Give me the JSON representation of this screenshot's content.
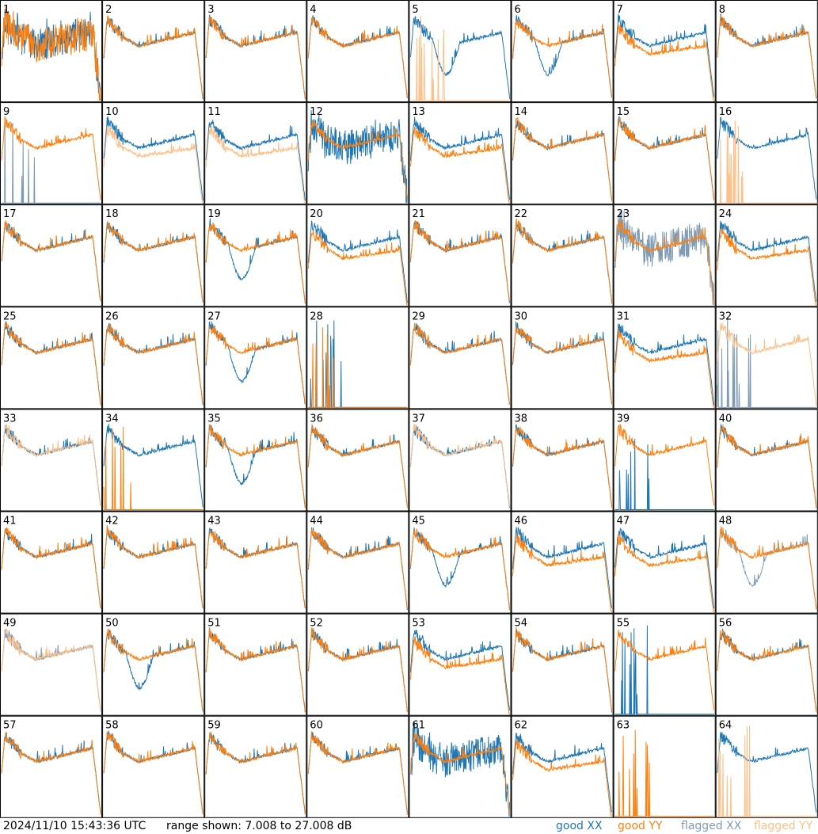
{
  "footer": {
    "timestamp": "2024/11/10 15:43:36 UTC",
    "range_text": "range shown: 7.008 to 27.008 dB"
  },
  "legend": {
    "good_xx": "good XX",
    "good_yy": "good YY",
    "flagged_xx": "flagged XX",
    "flagged_yy": "flagged YY"
  },
  "colors": {
    "good_xx": "#1f77b4",
    "good_yy": "#ff7f0e",
    "flagged_xx": "#7f9bb4",
    "flagged_yy": "#ffbf87"
  },
  "chart_data": {
    "type": "line",
    "layout": "8x8 small multiples",
    "ylim_db": [
      7.008,
      27.008
    ],
    "panels": [
      {
        "label": "1",
        "xx": "irregular",
        "yy": "irregular",
        "xx_flag": false,
        "yy_flag": false
      },
      {
        "label": "2",
        "xx": "normal",
        "yy": "normal",
        "xx_flag": false,
        "yy_flag": false
      },
      {
        "label": "3",
        "xx": "normal",
        "yy": "normal",
        "xx_flag": false,
        "yy_flag": false
      },
      {
        "label": "4",
        "xx": "normal",
        "yy": "normal",
        "xx_flag": false,
        "yy_flag": false
      },
      {
        "label": "5",
        "xx": "dip",
        "yy": "spikes",
        "xx_flag": false,
        "yy_flag": true
      },
      {
        "label": "6",
        "xx": "dip",
        "yy": "normal",
        "xx_flag": false,
        "yy_flag": false
      },
      {
        "label": "7",
        "xx": "normal",
        "yy": "low",
        "xx_flag": false,
        "yy_flag": false
      },
      {
        "label": "8",
        "xx": "normal",
        "yy": "normal",
        "xx_flag": false,
        "yy_flag": false
      },
      {
        "label": "9",
        "xx": "spikes",
        "yy": "normal",
        "xx_flag": true,
        "yy_flag": false
      },
      {
        "label": "10",
        "xx": "normal",
        "yy": "low",
        "xx_flag": false,
        "yy_flag": true
      },
      {
        "label": "11",
        "xx": "normal",
        "yy": "low",
        "xx_flag": false,
        "yy_flag": true
      },
      {
        "label": "12",
        "xx": "irregular",
        "yy": "normal",
        "xx_flag": false,
        "yy_flag": false
      },
      {
        "label": "13",
        "xx": "normal",
        "yy": "low",
        "xx_flag": false,
        "yy_flag": false
      },
      {
        "label": "14",
        "xx": "normal",
        "yy": "normal",
        "xx_flag": false,
        "yy_flag": false
      },
      {
        "label": "15",
        "xx": "normal",
        "yy": "normal",
        "xx_flag": false,
        "yy_flag": false
      },
      {
        "label": "16",
        "xx": "normal",
        "yy": "spikes",
        "xx_flag": false,
        "yy_flag": true
      },
      {
        "label": "17",
        "xx": "normal",
        "yy": "normal",
        "xx_flag": false,
        "yy_flag": false
      },
      {
        "label": "18",
        "xx": "normal",
        "yy": "normal",
        "xx_flag": false,
        "yy_flag": false
      },
      {
        "label": "19",
        "xx": "dip",
        "yy": "normal",
        "xx_flag": false,
        "yy_flag": false
      },
      {
        "label": "20",
        "xx": "normal",
        "yy": "low",
        "xx_flag": false,
        "yy_flag": false
      },
      {
        "label": "21",
        "xx": "normal",
        "yy": "normal",
        "xx_flag": false,
        "yy_flag": false
      },
      {
        "label": "22",
        "xx": "normal",
        "yy": "normal",
        "xx_flag": false,
        "yy_flag": false
      },
      {
        "label": "23",
        "xx": "irregular",
        "yy": "normal",
        "xx_flag": true,
        "yy_flag": false
      },
      {
        "label": "24",
        "xx": "normal",
        "yy": "low",
        "xx_flag": false,
        "yy_flag": false
      },
      {
        "label": "25",
        "xx": "normal",
        "yy": "normal",
        "xx_flag": false,
        "yy_flag": false
      },
      {
        "label": "26",
        "xx": "normal",
        "yy": "normal",
        "xx_flag": false,
        "yy_flag": false
      },
      {
        "label": "27",
        "xx": "dip",
        "yy": "normal",
        "xx_flag": false,
        "yy_flag": false
      },
      {
        "label": "28",
        "xx": "spikes",
        "yy": "spikes",
        "xx_flag": false,
        "yy_flag": false
      },
      {
        "label": "29",
        "xx": "normal",
        "yy": "normal",
        "xx_flag": false,
        "yy_flag": false
      },
      {
        "label": "30",
        "xx": "normal",
        "yy": "normal",
        "xx_flag": false,
        "yy_flag": false
      },
      {
        "label": "31",
        "xx": "normal",
        "yy": "low",
        "xx_flag": false,
        "yy_flag": false
      },
      {
        "label": "32",
        "xx": "spikes",
        "yy": "normal",
        "xx_flag": true,
        "yy_flag": true
      },
      {
        "label": "33",
        "xx": "normal",
        "yy": "normal",
        "xx_flag": false,
        "yy_flag": true
      },
      {
        "label": "34",
        "xx": "normal",
        "yy": "spikes",
        "xx_flag": false,
        "yy_flag": false
      },
      {
        "label": "35",
        "xx": "dip",
        "yy": "normal",
        "xx_flag": false,
        "yy_flag": false
      },
      {
        "label": "36",
        "xx": "normal",
        "yy": "normal",
        "xx_flag": false,
        "yy_flag": false
      },
      {
        "label": "37",
        "xx": "normal",
        "yy": "normal",
        "xx_flag": false,
        "yy_flag": true
      },
      {
        "label": "38",
        "xx": "normal",
        "yy": "normal",
        "xx_flag": false,
        "yy_flag": false
      },
      {
        "label": "39",
        "xx": "spikes",
        "yy": "normal",
        "xx_flag": false,
        "yy_flag": false
      },
      {
        "label": "40",
        "xx": "normal",
        "yy": "normal",
        "xx_flag": false,
        "yy_flag": false
      },
      {
        "label": "41",
        "xx": "normal",
        "yy": "normal",
        "xx_flag": false,
        "yy_flag": false
      },
      {
        "label": "42",
        "xx": "normal",
        "yy": "normal",
        "xx_flag": false,
        "yy_flag": false
      },
      {
        "label": "43",
        "xx": "normal",
        "yy": "normal",
        "xx_flag": false,
        "yy_flag": false
      },
      {
        "label": "44",
        "xx": "normal",
        "yy": "normal",
        "xx_flag": false,
        "yy_flag": false
      },
      {
        "label": "45",
        "xx": "dip",
        "yy": "normal",
        "xx_flag": false,
        "yy_flag": false
      },
      {
        "label": "46",
        "xx": "normal",
        "yy": "low",
        "xx_flag": false,
        "yy_flag": false
      },
      {
        "label": "47",
        "xx": "normal",
        "yy": "low",
        "xx_flag": false,
        "yy_flag": false
      },
      {
        "label": "48",
        "xx": "dip",
        "yy": "normal",
        "xx_flag": true,
        "yy_flag": false
      },
      {
        "label": "49",
        "xx": "normal",
        "yy": "normal",
        "xx_flag": true,
        "yy_flag": true
      },
      {
        "label": "50",
        "xx": "dip",
        "yy": "normal",
        "xx_flag": false,
        "yy_flag": false
      },
      {
        "label": "51",
        "xx": "normal",
        "yy": "normal",
        "xx_flag": false,
        "yy_flag": false
      },
      {
        "label": "52",
        "xx": "normal",
        "yy": "normal",
        "xx_flag": false,
        "yy_flag": false
      },
      {
        "label": "53",
        "xx": "normal",
        "yy": "low",
        "xx_flag": false,
        "yy_flag": false
      },
      {
        "label": "54",
        "xx": "normal",
        "yy": "normal",
        "xx_flag": false,
        "yy_flag": false
      },
      {
        "label": "55",
        "xx": "spikes",
        "yy": "normal",
        "xx_flag": false,
        "yy_flag": false
      },
      {
        "label": "56",
        "xx": "normal",
        "yy": "normal",
        "xx_flag": false,
        "yy_flag": false
      },
      {
        "label": "57",
        "xx": "normal",
        "yy": "normal",
        "xx_flag": false,
        "yy_flag": false
      },
      {
        "label": "58",
        "xx": "normal",
        "yy": "normal",
        "xx_flag": false,
        "yy_flag": false
      },
      {
        "label": "59",
        "xx": "normal",
        "yy": "normal",
        "xx_flag": false,
        "yy_flag": false
      },
      {
        "label": "60",
        "xx": "normal",
        "yy": "normal",
        "xx_flag": false,
        "yy_flag": false
      },
      {
        "label": "61",
        "xx": "irregular",
        "yy": "normal",
        "xx_flag": false,
        "yy_flag": false
      },
      {
        "label": "62",
        "xx": "normal",
        "yy": "low",
        "xx_flag": false,
        "yy_flag": false
      },
      {
        "label": "63",
        "xx": "none",
        "yy": "spikes",
        "xx_flag": false,
        "yy_flag": false
      },
      {
        "label": "64",
        "xx": "normal",
        "yy": "spikes",
        "xx_flag": false,
        "yy_flag": true
      }
    ]
  }
}
